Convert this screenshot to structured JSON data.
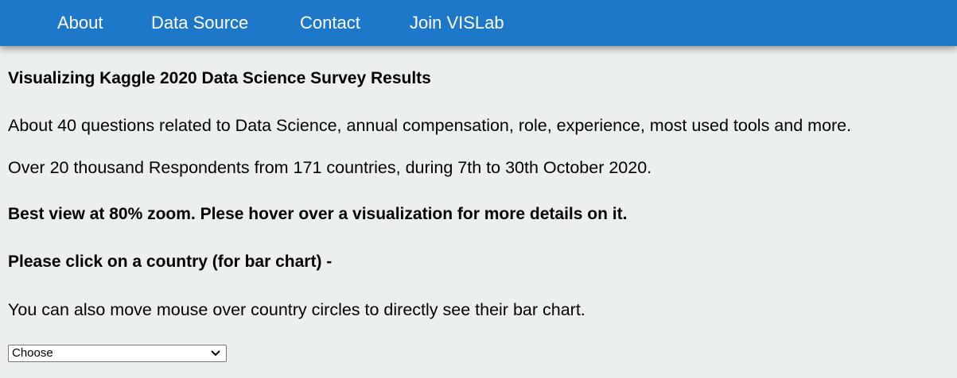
{
  "nav": {
    "items": [
      "About",
      "Data Source",
      "Contact",
      "Join VISLab"
    ]
  },
  "main": {
    "title": "Visualizing Kaggle 2020 Data Science Survey Results",
    "description_1": "About 40 questions related to Data Science, annual compensation, role, experience, most used tools and more.",
    "description_2": "Over 20 thousand Respondents from 171 countries, during 7th to 30th October 2020.",
    "hint_zoom": "Best view at 80% zoom. Plese hover over a visualization for more details on it.",
    "hint_click": "Please click on a country (for bar chart) -",
    "hint_hover": "You can also move mouse over country circles to directly see their bar chart."
  },
  "country_select": {
    "selected": "Choose",
    "icon": "chevron-down-icon"
  },
  "colors": {
    "navbar": "#1d78c9",
    "background": "#ecf0ed",
    "nav_text": "#ffffff"
  }
}
